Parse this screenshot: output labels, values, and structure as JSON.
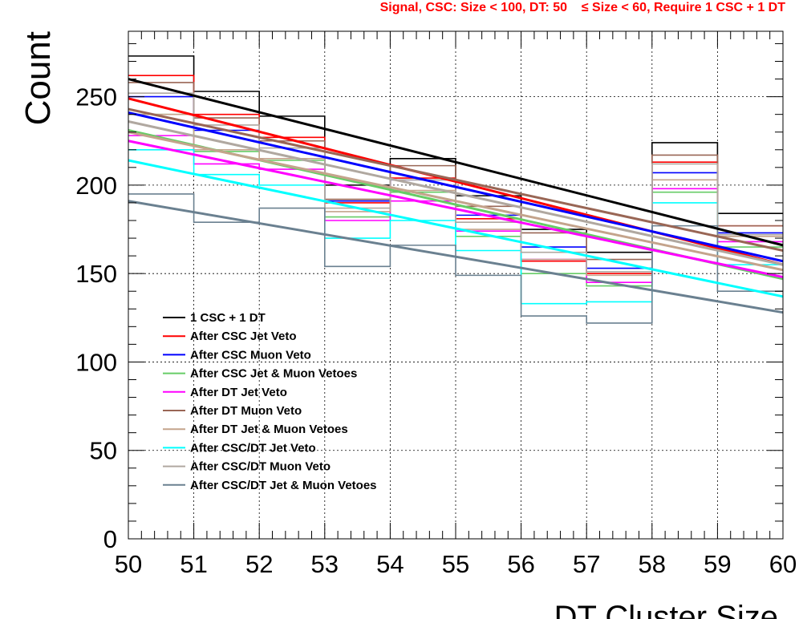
{
  "chart_data": {
    "type": "line",
    "title": "Signal, CSC: Size < 100, DT: 50    ≤ Size < 60, Require 1 CSC + 1 DT",
    "xlabel": "DT Cluster Size",
    "ylabel": "Count",
    "xlim": [
      50,
      60
    ],
    "ylim": [
      0,
      287
    ],
    "x_ticks": [
      "50",
      "51",
      "52",
      "53",
      "54",
      "55",
      "56",
      "57",
      "58",
      "59",
      "60"
    ],
    "y_ticks": [
      "0",
      "50",
      "100",
      "150",
      "200",
      "250"
    ],
    "grid": true,
    "legend_position": "center-left",
    "bins": [
      50,
      51,
      52,
      53,
      54,
      55,
      56,
      57,
      58,
      59,
      60
    ],
    "series": [
      {
        "name": "1 CSC + 1 DT",
        "color": "#000000",
        "hist": [
          273,
          253,
          239,
          200,
          215,
          194,
          175,
          162,
          224,
          184
        ],
        "fit": [
          260,
          166
        ]
      },
      {
        "name": "After CSC Jet Veto",
        "color": "#ff0000",
        "hist": [
          262,
          240,
          227,
          190,
          204,
          181,
          157,
          150,
          213,
          177
        ],
        "fit": [
          249,
          155
        ]
      },
      {
        "name": "After CSC Muon Veto",
        "color": "#0000ff",
        "hist": [
          250,
          231,
          225,
          191,
          203,
          183,
          165,
          153,
          207,
          173
        ],
        "fit": [
          241,
          157
        ]
      },
      {
        "name": "After CSC Jet & Muon Vetoes",
        "color": "#66cc66",
        "hist": [
          240,
          219,
          214,
          182,
          196,
          171,
          150,
          143,
          196,
          165
        ],
        "fit": [
          231,
          147
        ]
      },
      {
        "name": "After DT Jet Veto",
        "color": "#ff00ff",
        "hist": [
          228,
          212,
          209,
          180,
          191,
          174,
          158,
          145,
          198,
          168
        ],
        "fit": [
          225,
          148
        ]
      },
      {
        "name": "After DT Muon Veto",
        "color": "#996655",
        "hist": [
          258,
          238,
          225,
          192,
          211,
          188,
          173,
          158,
          217,
          177
        ],
        "fit": [
          243,
          163
        ]
      },
      {
        "name": "After DT Jet & Muon Vetoes",
        "color": "#c4a48c",
        "hist": [
          240,
          220,
          215,
          185,
          197,
          175,
          158,
          149,
          203,
          171
        ],
        "fit": [
          230,
          152
        ]
      },
      {
        "name": "After CSC/DT Jet Veto",
        "color": "#00ffff",
        "hist": [
          220,
          206,
          200,
          170,
          180,
          163,
          133,
          134,
          190,
          155
        ],
        "fit": [
          214,
          137
        ]
      },
      {
        "name": "After CSC/DT Muon Veto",
        "color": "#b0a8a0",
        "hist": [
          252,
          234,
          221,
          187,
          203,
          179,
          162,
          151,
          212,
          172
        ],
        "fit": [
          236,
          155
        ]
      },
      {
        "name": "After CSC/DT Jet & Muon Vetoes",
        "color": "#6a8090",
        "hist": [
          195,
          179,
          187,
          154,
          166,
          149,
          126,
          122,
          177,
          140
        ],
        "fit": [
          191,
          128
        ]
      }
    ]
  }
}
